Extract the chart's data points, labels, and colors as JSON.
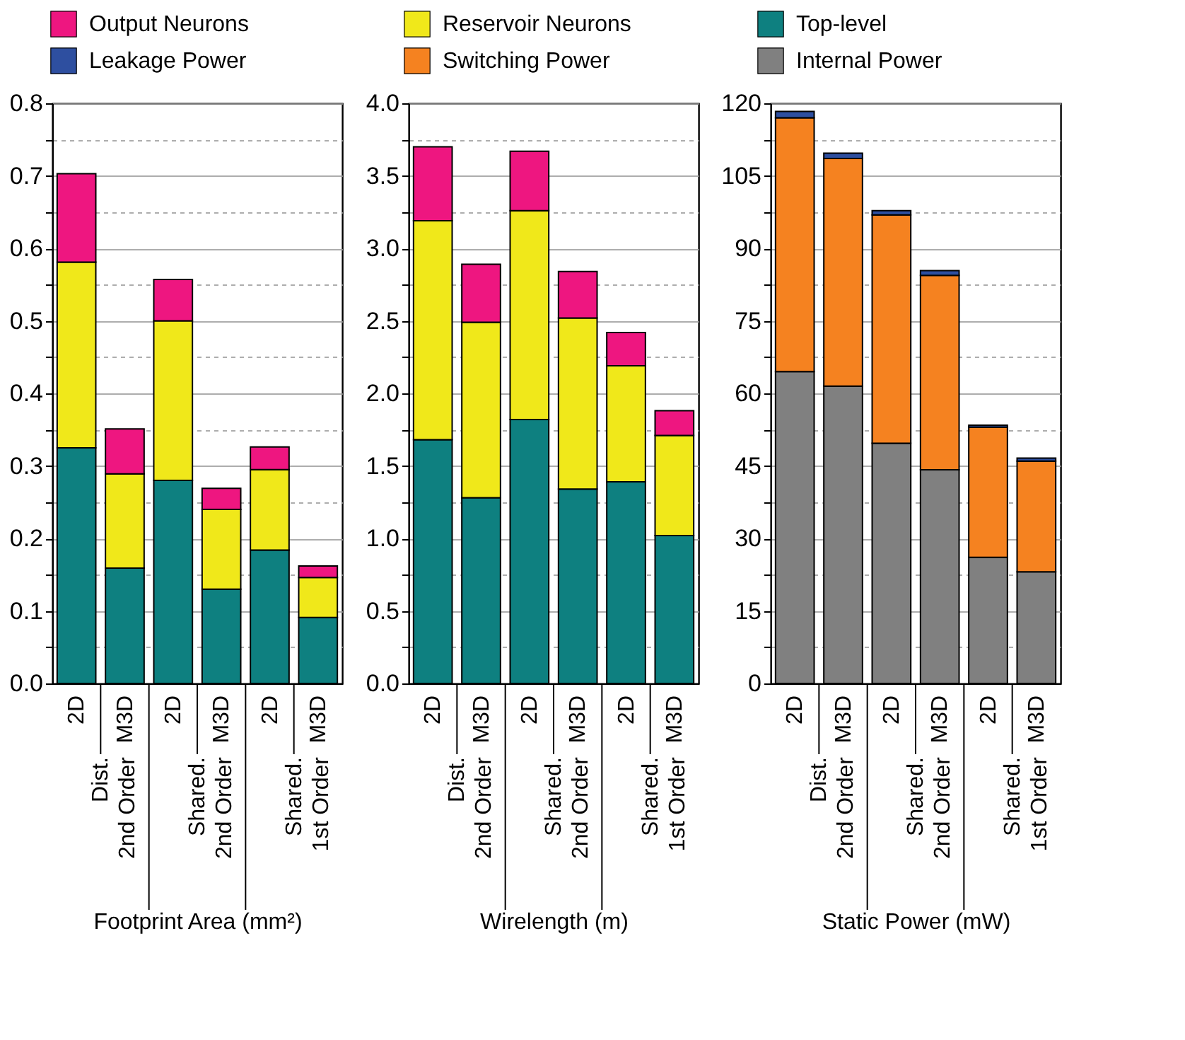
{
  "chart_data": [
    {
      "type": "bar",
      "stacked": true,
      "xlabel": "Footprint Area (mm²)",
      "categories": [
        "2D",
        "M3D",
        "2D",
        "M3D",
        "2D",
        "M3D"
      ],
      "annotations": [
        "Dist. 2nd Order",
        "Shared. 2nd Order",
        "Shared. 1st Order"
      ],
      "series": [
        {
          "name": "Top-level",
          "color": "#0e8080",
          "values": [
            0.325,
            0.159,
            0.28,
            0.13,
            0.184,
            0.091
          ]
        },
        {
          "name": "Reservoir Neurons",
          "color": "#f0e81a",
          "values": [
            0.256,
            0.13,
            0.22,
            0.11,
            0.111,
            0.055
          ]
        },
        {
          "name": "Output Neurons",
          "color": "#ee1680",
          "values": [
            0.122,
            0.062,
            0.057,
            0.029,
            0.031,
            0.016
          ]
        }
      ],
      "ylim": [
        0,
        0.8
      ],
      "yticks": [
        {
          "value": 0,
          "label": "0.0"
        },
        {
          "value": 0.05,
          "label": null
        },
        0.1,
        {
          "value": 0.15,
          "label": null
        },
        0.2,
        {
          "value": 0.25,
          "label": null
        },
        0.3,
        {
          "value": 0.35,
          "label": null
        },
        0.4,
        {
          "value": 0.45,
          "label": null
        },
        0.5,
        {
          "value": 0.55,
          "label": null
        },
        0.6,
        {
          "value": 0.65,
          "label": null
        },
        0.7,
        {
          "value": 0.75,
          "label": null
        },
        0.8
      ],
      "grid": "y",
      "legend": "top"
    },
    {
      "type": "bar",
      "stacked": true,
      "xlabel": "Wirelength (m)",
      "categories": [
        "2D",
        "M3D",
        "2D",
        "M3D",
        "2D",
        "M3D"
      ],
      "annotations": [
        "Dist. 2nd Order",
        "Shared. 2nd Order",
        "Shared. 1st Order"
      ],
      "series": [
        {
          "name": "Top-level",
          "color": "#0e8080",
          "values": [
            1.68,
            1.28,
            1.82,
            1.34,
            1.39,
            1.02
          ]
        },
        {
          "name": "Reservoir Neurons",
          "color": "#f0e81a",
          "values": [
            1.51,
            1.21,
            1.44,
            1.18,
            0.8,
            0.69
          ]
        },
        {
          "name": "Output Neurons",
          "color": "#ee1680",
          "values": [
            0.51,
            0.4,
            0.41,
            0.32,
            0.23,
            0.17
          ]
        }
      ],
      "ylim": [
        0,
        4
      ],
      "yticks": [
        {
          "value": 0,
          "label": "0.0"
        },
        {
          "value": 0.25,
          "label": null
        },
        0.5,
        {
          "value": 0.75,
          "label": null
        },
        {
          "value": 1,
          "label": "1.0"
        },
        {
          "value": 1.25,
          "label": null
        },
        1.5,
        {
          "value": 1.75,
          "label": null
        },
        {
          "value": 2,
          "label": "2.0"
        },
        {
          "value": 2.25,
          "label": null
        },
        2.5,
        {
          "value": 2.75,
          "label": null
        },
        {
          "value": 3,
          "label": "3.0"
        },
        {
          "value": 3.25,
          "label": null
        },
        3.5,
        {
          "value": 3.75,
          "label": null
        },
        {
          "value": 4,
          "label": "4.0"
        }
      ],
      "grid": "y",
      "legend": "top"
    },
    {
      "type": "bar",
      "stacked": true,
      "xlabel": "Static Power (mW)",
      "categories": [
        "2D",
        "M3D",
        "2D",
        "M3D",
        "2D",
        "M3D"
      ],
      "annotations": [
        "Dist. 2nd Order",
        "Shared. 2nd Order",
        "Shared. 1st Order"
      ],
      "series": [
        {
          "name": "Internal Power",
          "color": "#808080",
          "values": [
            64.5,
            61.5,
            49.7,
            44.2,
            26.1,
            23.1
          ]
        },
        {
          "name": "Switching Power",
          "color": "#f58220",
          "values": [
            52.5,
            47.1,
            47.2,
            40.2,
            26.9,
            22.9
          ]
        },
        {
          "name": "Leakage Power",
          "color": "#2e4fa0",
          "values": [
            1.3,
            1.1,
            0.9,
            1.0,
            0.4,
            0.6
          ]
        }
      ],
      "ylim": [
        0,
        120
      ],
      "yticks": [
        0,
        {
          "value": 7.5,
          "label": null
        },
        15,
        {
          "value": 22.5,
          "label": null
        },
        30,
        {
          "value": 37.5,
          "label": null
        },
        45,
        {
          "value": 52.5,
          "label": null
        },
        60,
        {
          "value": 67.5,
          "label": null
        },
        75,
        {
          "value": 82.5,
          "label": null
        },
        90,
        {
          "value": 97.5,
          "label": null
        },
        105,
        {
          "value": 112.5,
          "label": null
        },
        120
      ],
      "grid": "y",
      "legend": "top"
    }
  ]
}
